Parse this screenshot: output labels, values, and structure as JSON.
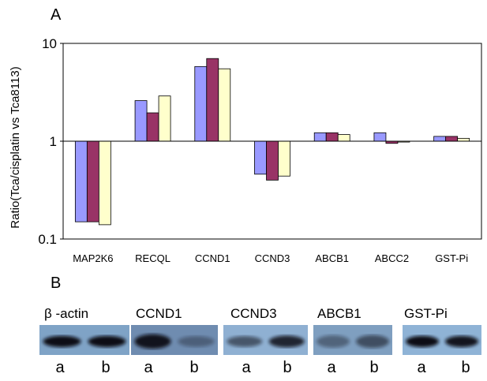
{
  "panel_a_label": "A",
  "panel_b_label": "B",
  "chart_data": {
    "type": "bar",
    "scale": "log",
    "title": "",
    "xlabel": "",
    "ylabel": "Ratio(Tca/cisplatin vs Tca8113)",
    "ylim": [
      0.1,
      10
    ],
    "yticks": [
      "0.1",
      "1",
      "10"
    ],
    "baseline": 1,
    "grid": false,
    "legend": "none",
    "categories": [
      "MAP2K6",
      "RECQL",
      "CCND1",
      "CCND3",
      "ABCB1",
      "ABCC2",
      "GST-Pi"
    ],
    "series": [
      {
        "color": "#9999ff",
        "values": [
          0.15,
          2.6,
          5.8,
          0.46,
          1.22,
          1.22,
          1.12
        ]
      },
      {
        "color": "#993366",
        "values": [
          0.15,
          1.95,
          7.0,
          0.4,
          1.22,
          0.95,
          1.12
        ]
      },
      {
        "color": "#ffffcc",
        "values": [
          0.14,
          2.9,
          5.5,
          0.44,
          1.17,
          0.98,
          1.07
        ]
      }
    ]
  },
  "western_blot": {
    "blots": [
      {
        "title": "β -actin",
        "lanes": [
          "a",
          "b"
        ],
        "bg": "#7fa3c6",
        "bands": [
          {
            "intensity": 1.0,
            "spread": 0.45
          },
          {
            "intensity": 1.0,
            "spread": 0.45
          }
        ]
      },
      {
        "title": "CCND1",
        "lanes": [
          "a",
          "b"
        ],
        "bg": "#6f8cb0",
        "bands": [
          {
            "intensity": 0.95,
            "spread": 0.75
          },
          {
            "intensity": 0.35,
            "spread": 0.4
          }
        ]
      },
      {
        "title": "CCND3",
        "lanes": [
          "a",
          "b"
        ],
        "bg": "#8fb0d2",
        "bands": [
          {
            "intensity": 0.55,
            "spread": 0.4
          },
          {
            "intensity": 0.85,
            "spread": 0.5
          }
        ]
      },
      {
        "title": "ABCB1",
        "lanes": [
          "a",
          "b"
        ],
        "bg": "#7f9fc0",
        "bands": [
          {
            "intensity": 0.4,
            "spread": 0.55
          },
          {
            "intensity": 0.55,
            "spread": 0.6
          }
        ]
      },
      {
        "title": "GST-Pi",
        "lanes": [
          "a",
          "b"
        ],
        "bg": "#8fb3d6",
        "bands": [
          {
            "intensity": 1.0,
            "spread": 0.45
          },
          {
            "intensity": 0.95,
            "spread": 0.45
          }
        ]
      }
    ]
  }
}
